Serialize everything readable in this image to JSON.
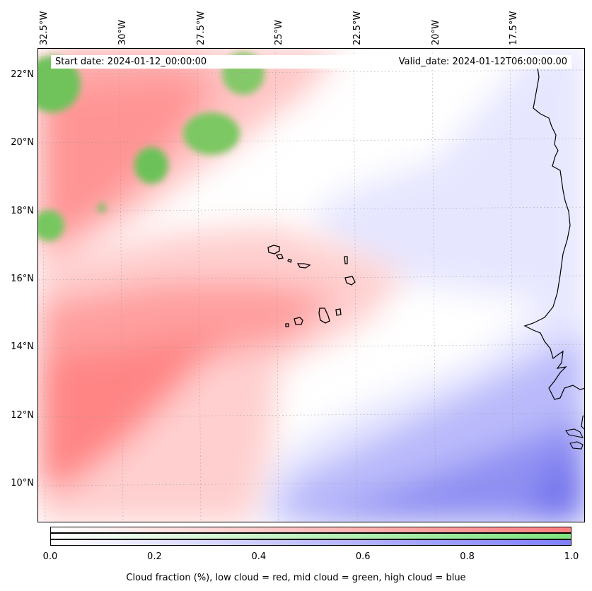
{
  "map": {
    "start_date": "Start date: 2024-01-12_00:00:00",
    "valid_date": "Valid_date: 2024-01-12T06:00:00.00",
    "lon_labels": [
      "32.5°W",
      "30°W",
      "27.5°W",
      "25°W",
      "22.5°W",
      "20°W",
      "17.5°W"
    ],
    "lat_labels": [
      "22°N",
      "20°N",
      "18°N",
      "16°N",
      "14°N",
      "12°N",
      "10°N"
    ],
    "colors": {
      "low_cloud": "#ff7f7f",
      "mid_cloud": "#7fe57f",
      "high_cloud": "#7f7fff"
    }
  },
  "colorbar": {
    "ticks": [
      "0.0",
      "0.2",
      "0.4",
      "0.6",
      "0.8",
      "1.0"
    ],
    "label": "Cloud fraction (%), low cloud = red, mid cloud = green, high cloud = blue"
  }
}
